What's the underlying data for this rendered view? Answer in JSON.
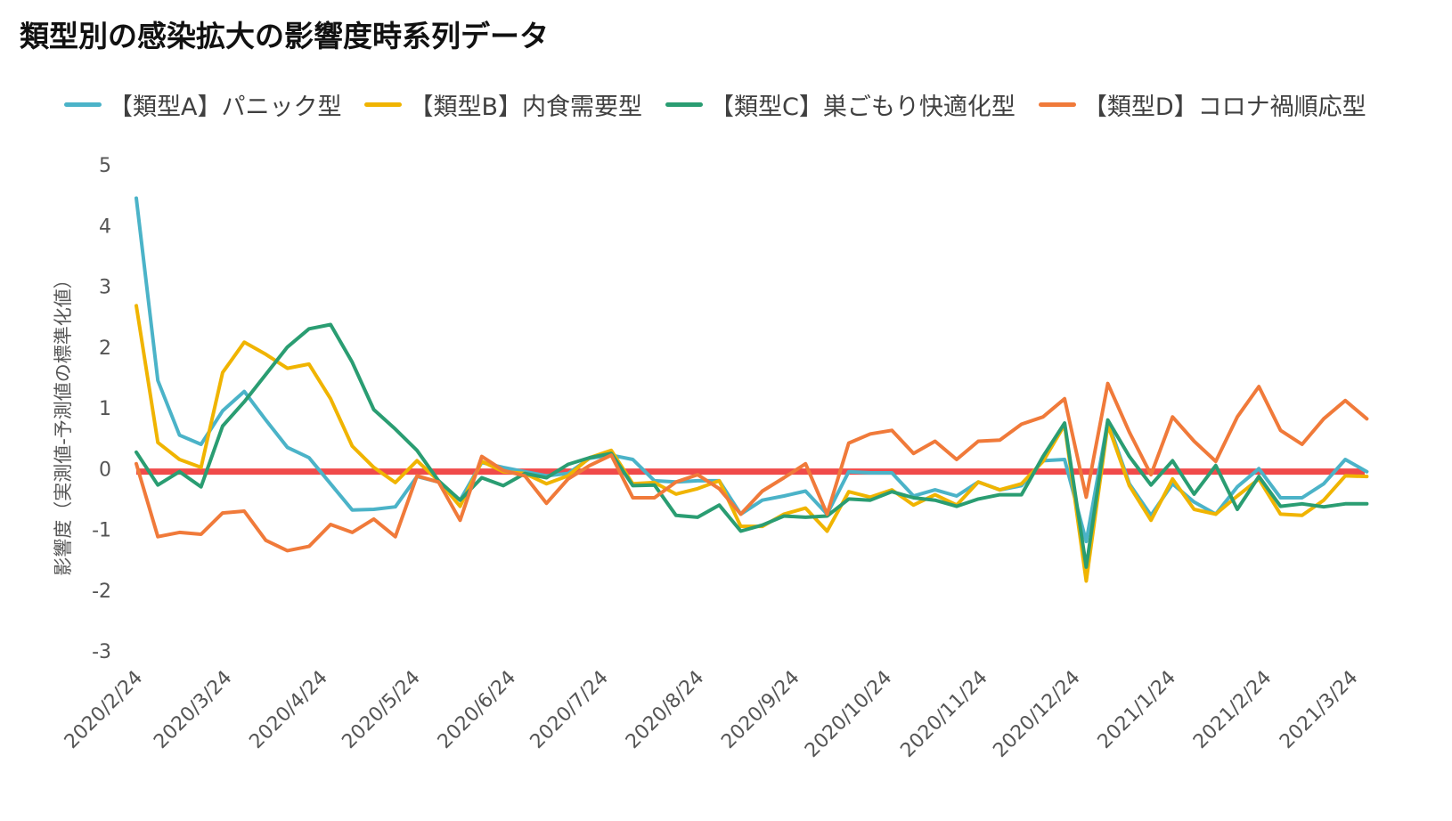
{
  "title": "類型別の感染拡大の影響度時系列データ",
  "legend": {
    "a": "【類型A】パニック型",
    "b": "【類型B】内食需要型",
    "c": "【類型C】巣ごもり快適化型",
    "d": "【類型D】コロナ禍順応型"
  },
  "colors": {
    "a": "#4bb3c8",
    "b": "#f0b400",
    "c": "#2a9d72",
    "d": "#f07a3a",
    "baseline": "#f04a4a"
  },
  "chart_data": {
    "type": "line",
    "title": "類型別の感染拡大の影響度時系列データ",
    "xlabel": "",
    "ylabel": "影響度（実測値-予測値の標準化値）",
    "ylim": [
      -3,
      5
    ],
    "yticks": [
      5,
      4,
      3,
      2,
      1,
      0,
      -1,
      -2,
      -3
    ],
    "x_tick_labels": [
      "2020/2/24",
      "2020/3/24",
      "2020/4/24",
      "2020/5/24",
      "2020/6/24",
      "2020/7/24",
      "2020/8/24",
      "2020/9/24",
      "2020/10/24",
      "2020/11/24",
      "2020/12/24",
      "2021/1/24",
      "2021/2/24",
      "2021/3/24"
    ],
    "x_tick_positions": [
      0,
      4.14,
      8.57,
      12.86,
      17.29,
      21.57,
      26,
      30.43,
      34.71,
      39.14,
      43.43,
      47.86,
      52.29,
      56.29
    ],
    "x_range": [
      0,
      56.9
    ],
    "baseline": -0.05,
    "grid": false,
    "legend_position": "top",
    "series": [
      {
        "name": "【類型A】パニック型",
        "key": "a",
        "values": [
          4.45,
          1.45,
          0.55,
          0.4,
          0.95,
          1.27,
          0.8,
          0.35,
          0.18,
          -0.25,
          -0.68,
          -0.67,
          -0.63,
          -0.13,
          -0.22,
          -0.52,
          0.1,
          0.02,
          -0.05,
          -0.12,
          -0.08,
          0.17,
          0.22,
          0.15,
          -0.2,
          -0.22,
          -0.2,
          -0.2,
          -0.75,
          -0.52,
          -0.45,
          -0.37,
          -0.75,
          -0.05,
          -0.07,
          -0.07,
          -0.45,
          -0.35,
          -0.45,
          -0.22,
          -0.35,
          -0.28,
          0.13,
          0.15,
          -1.2,
          0.78,
          -0.25,
          -0.77,
          -0.25,
          -0.55,
          -0.75,
          -0.3,
          0.0,
          -0.48,
          -0.48,
          -0.25,
          0.15,
          -0.05
        ]
      },
      {
        "name": "【類型B】内食需要型",
        "key": "b",
        "values": [
          2.68,
          0.43,
          0.15,
          0.02,
          1.58,
          2.08,
          1.88,
          1.65,
          1.72,
          1.15,
          0.37,
          0.02,
          -0.23,
          0.13,
          -0.2,
          -0.62,
          0.12,
          -0.05,
          -0.08,
          -0.25,
          -0.12,
          0.18,
          0.3,
          -0.25,
          -0.23,
          -0.42,
          -0.33,
          -0.2,
          -0.95,
          -0.95,
          -0.75,
          -0.65,
          -1.03,
          -0.38,
          -0.47,
          -0.35,
          -0.6,
          -0.43,
          -0.6,
          -0.22,
          -0.35,
          -0.25,
          0.12,
          0.72,
          -1.85,
          0.72,
          -0.28,
          -0.85,
          -0.17,
          -0.67,
          -0.75,
          -0.45,
          -0.17,
          -0.75,
          -0.77,
          -0.52,
          -0.12,
          -0.13
        ]
      },
      {
        "name": "【類型C】巣ごもり快適化型",
        "key": "c",
        "values": [
          0.27,
          -0.27,
          -0.05,
          -0.3,
          0.7,
          1.1,
          1.55,
          2.0,
          2.3,
          2.37,
          1.75,
          0.97,
          0.65,
          0.3,
          -0.2,
          -0.52,
          -0.15,
          -0.28,
          -0.08,
          -0.15,
          0.07,
          0.18,
          0.25,
          -0.28,
          -0.27,
          -0.77,
          -0.8,
          -0.6,
          -1.03,
          -0.93,
          -0.78,
          -0.8,
          -0.78,
          -0.5,
          -0.52,
          -0.38,
          -0.48,
          -0.52,
          -0.62,
          -0.5,
          -0.43,
          -0.43,
          0.2,
          0.75,
          -1.62,
          0.8,
          0.2,
          -0.27,
          0.13,
          -0.42,
          0.05,
          -0.67,
          -0.13,
          -0.62,
          -0.58,
          -0.63,
          -0.58,
          -0.58
        ]
      },
      {
        "name": "【類型D】コロナ禍順応型",
        "key": "d",
        "values": [
          0.08,
          -1.12,
          -1.05,
          -1.08,
          -0.73,
          -0.7,
          -1.18,
          -1.35,
          -1.28,
          -0.92,
          -1.05,
          -0.83,
          -1.12,
          -0.12,
          -0.22,
          -0.85,
          0.2,
          -0.03,
          -0.12,
          -0.57,
          -0.17,
          0.05,
          0.22,
          -0.48,
          -0.48,
          -0.22,
          -0.1,
          -0.33,
          -0.75,
          -0.37,
          -0.15,
          0.08,
          -0.75,
          0.42,
          0.57,
          0.63,
          0.25,
          0.45,
          0.15,
          0.45,
          0.47,
          0.73,
          0.85,
          1.15,
          -0.47,
          1.4,
          0.6,
          -0.1,
          0.85,
          0.45,
          0.12,
          0.85,
          1.35,
          0.63,
          0.4,
          0.82,
          1.12,
          0.82
        ]
      }
    ]
  }
}
